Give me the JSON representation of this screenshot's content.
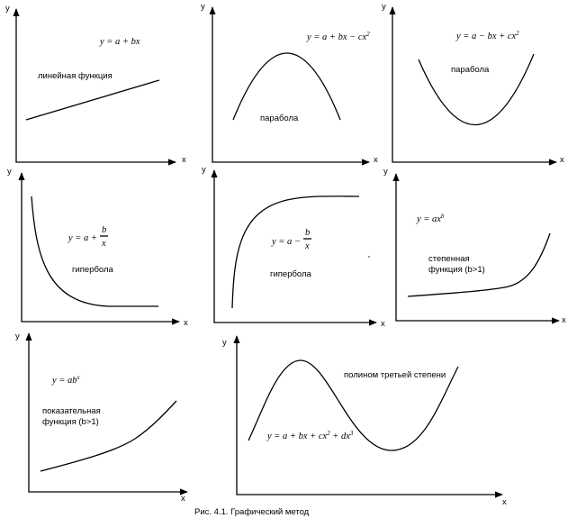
{
  "axis_labels": {
    "x": "x",
    "y": "y"
  },
  "panels": [
    {
      "id": "linear",
      "label": "линейная функция",
      "equation": "y = a + bx"
    },
    {
      "id": "parabola-down",
      "label": "парабола",
      "equation": "y = a + bx − cx²"
    },
    {
      "id": "parabola-up",
      "label": "парабола",
      "equation": "y = a − bx + cx²"
    },
    {
      "id": "hyperbola-decreasing",
      "label": "гипербола",
      "equation": "y = a + b/x"
    },
    {
      "id": "hyperbola-increasing",
      "label": "гипербола",
      "equation": "y = a − b/x"
    },
    {
      "id": "power",
      "label_line1": "степенная",
      "label_line2": "функция (b>1)",
      "equation": "y = ax^b"
    },
    {
      "id": "exponential",
      "label_line1": "показательная",
      "label_line2": "функция (b>1)",
      "equation": "y = ab^x"
    },
    {
      "id": "cubic",
      "label": "полином третьей степени",
      "equation": "y = a + bx + cx² + dx³"
    }
  ],
  "caption": "Рис. 4.1. Графический метод"
}
